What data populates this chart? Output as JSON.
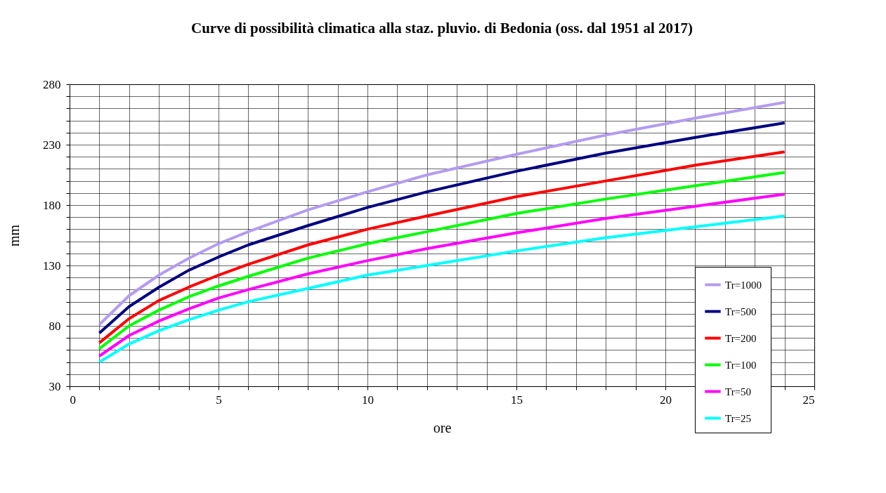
{
  "chart_data": {
    "type": "line",
    "title": "Curve di possibilità climatica alla staz. pluvio. di Bedonia  (oss. dal 1951 al 2017)",
    "xlabel": "ore",
    "ylabel": "mm",
    "x": [
      1,
      2,
      3,
      4,
      5,
      6,
      8,
      10,
      12,
      15,
      18,
      21,
      24
    ],
    "series": [
      {
        "name": "Tr=1000",
        "color": "#b39cf0",
        "values": [
          81,
          105,
          122,
          136,
          148,
          158,
          176,
          191,
          205,
          222,
          238,
          252,
          265
        ]
      },
      {
        "name": "Tr=500",
        "color": "#000080",
        "values": [
          74,
          96,
          112,
          126,
          137,
          147,
          163,
          178,
          191,
          208,
          223,
          236,
          248
        ]
      },
      {
        "name": "Tr=200",
        "color": "#ff0000",
        "values": [
          66,
          86,
          101,
          112,
          122,
          131,
          147,
          160,
          171,
          187,
          200,
          213,
          224
        ]
      },
      {
        "name": "Tr=100",
        "color": "#00ff00",
        "values": [
          61,
          80,
          93,
          104,
          113,
          121,
          136,
          148,
          158,
          173,
          185,
          196,
          207
        ]
      },
      {
        "name": "Tr=50",
        "color": "#ff00ff",
        "values": [
          55,
          72,
          84,
          94,
          103,
          110,
          123,
          134,
          144,
          157,
          169,
          179,
          189
        ]
      },
      {
        "name": "Tr=25",
        "color": "#00ffff",
        "values": [
          50,
          65,
          76,
          85,
          93,
          100,
          111,
          122,
          130,
          142,
          153,
          162,
          171
        ]
      }
    ],
    "xlim": [
      0,
      25
    ],
    "xticks": [
      0,
      {
        "value": 1,
        "label": null
      },
      {
        "value": 2,
        "label": null
      },
      {
        "value": 3,
        "label": null
      },
      {
        "value": 4,
        "label": null
      },
      5,
      {
        "value": 6,
        "label": null
      },
      {
        "value": 7,
        "label": null
      },
      {
        "value": 8,
        "label": null
      },
      {
        "value": 9,
        "label": null
      },
      10,
      {
        "value": 11,
        "label": null
      },
      {
        "value": 12,
        "label": null
      },
      {
        "value": 13,
        "label": null
      },
      {
        "value": 14,
        "label": null
      },
      15,
      {
        "value": 16,
        "label": null
      },
      {
        "value": 17,
        "label": null
      },
      {
        "value": 18,
        "label": null
      },
      {
        "value": 19,
        "label": null
      },
      20,
      {
        "value": 21,
        "label": null
      },
      {
        "value": 22,
        "label": null
      },
      {
        "value": 23,
        "label": null
      },
      {
        "value": 24,
        "label": null
      },
      25
    ],
    "ylim": [
      30,
      280
    ],
    "yticks": [
      30,
      {
        "value": 40,
        "label": null
      },
      {
        "value": 50,
        "label": null
      },
      {
        "value": 60,
        "label": null
      },
      {
        "value": 70,
        "label": null
      },
      80,
      {
        "value": 90,
        "label": null
      },
      {
        "value": 100,
        "label": null
      },
      {
        "value": 110,
        "label": null
      },
      {
        "value": 120,
        "label": null
      },
      130,
      {
        "value": 140,
        "label": null
      },
      {
        "value": 150,
        "label": null
      },
      {
        "value": 160,
        "label": null
      },
      {
        "value": 170,
        "label": null
      },
      180,
      {
        "value": 190,
        "label": null
      },
      {
        "value": 200,
        "label": null
      },
      {
        "value": 210,
        "label": null
      },
      {
        "value": 220,
        "label": null
      },
      230,
      {
        "value": 240,
        "label": null
      },
      {
        "value": 250,
        "label": null
      },
      {
        "value": 260,
        "label": null
      },
      {
        "value": 270,
        "label": null
      },
      280
    ],
    "grid": true,
    "legend": "bottom right",
    "line_style": "solid"
  }
}
